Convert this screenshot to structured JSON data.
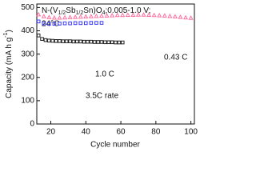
{
  "chart_data": {
    "type": "scatter",
    "title_parts": [
      "N-(V",
      {
        "text": "1/2",
        "shift": "sub"
      },
      "Sb",
      {
        "text": "1/2",
        "shift": "sub"
      },
      "Sn)O",
      {
        "text": "4",
        "shift": "sub"
      },
      ";0.005-1.0 V;"
    ],
    "subtitle": "24°C",
    "x_label": "Cycle number",
    "y_label_parts": [
      "Capacity (mA h g",
      {
        "text": "-1",
        "shift": "super"
      },
      ")"
    ],
    "xlim": [
      12,
      102
    ],
    "xticks": [
      20,
      40,
      60,
      80,
      100
    ],
    "ylim": [
      0,
      515
    ],
    "yticks": [
      0,
      100,
      200,
      300,
      400,
      500
    ],
    "series": [
      {
        "name": "0.43 C",
        "color": "#ff6fa0",
        "marker": "triangle",
        "x": [
          13,
          16,
          19,
          22,
          25,
          28,
          31,
          34,
          37,
          40,
          43,
          46,
          49,
          52,
          55,
          58,
          61,
          64,
          67,
          70,
          73,
          76,
          79,
          82,
          85,
          88,
          91,
          94,
          97,
          100
        ],
        "values": [
          470,
          462,
          458,
          456,
          456,
          457,
          458,
          459,
          460,
          461,
          462,
          463,
          464,
          465,
          466,
          467,
          467,
          468,
          468,
          469,
          469,
          468,
          467,
          466,
          465,
          463,
          461,
          459,
          457,
          455
        ]
      },
      {
        "name": "1.0 C",
        "color": "#3b3bff",
        "marker": "square",
        "x": [
          13,
          16,
          19,
          22,
          25,
          28,
          31,
          34,
          37,
          40,
          43,
          46,
          49
        ],
        "values": [
          440,
          432,
          430,
          430,
          431,
          432,
          432,
          433,
          433,
          433,
          434,
          434,
          434
        ]
      },
      {
        "name": "3.5C rate",
        "color": "#222222",
        "marker": "square",
        "x": [
          13,
          15,
          17,
          19,
          21,
          23,
          25,
          27,
          29,
          31,
          33,
          35,
          37,
          39,
          41,
          43,
          45,
          47,
          49,
          51,
          53,
          55,
          57,
          59,
          61
        ],
        "values": [
          380,
          365,
          360,
          358,
          357,
          356,
          356,
          355,
          355,
          355,
          354,
          354,
          354,
          353,
          353,
          353,
          352,
          352,
          352,
          351,
          351,
          351,
          350,
          350,
          350
        ]
      }
    ]
  }
}
